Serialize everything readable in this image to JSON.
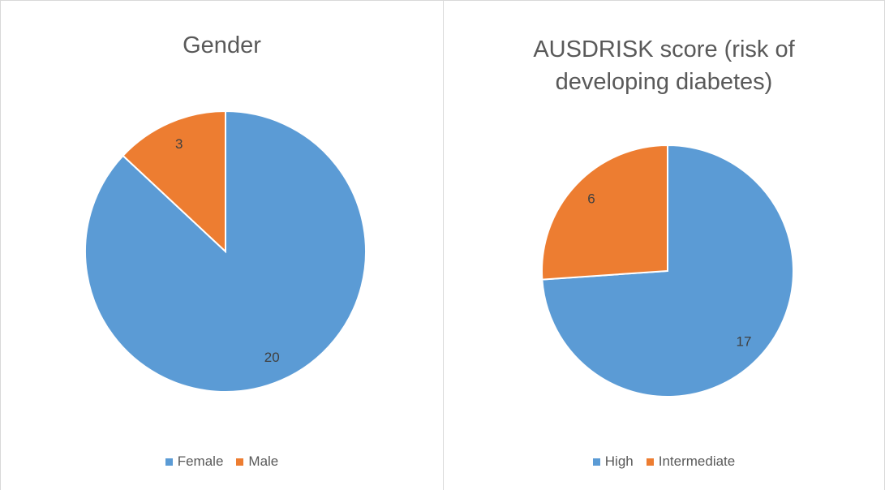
{
  "chart_data": [
    {
      "type": "pie",
      "title": "Gender",
      "categories": [
        "Female",
        "Male"
      ],
      "values": [
        20,
        3
      ],
      "colors": [
        "#5b9bd5",
        "#ed7d31"
      ]
    },
    {
      "type": "pie",
      "title": "AUSDRISK score (risk of developing diabetes)",
      "categories": [
        "High",
        "Intermediate"
      ],
      "values": [
        17,
        6
      ],
      "colors": [
        "#5b9bd5",
        "#ed7d31"
      ]
    }
  ]
}
